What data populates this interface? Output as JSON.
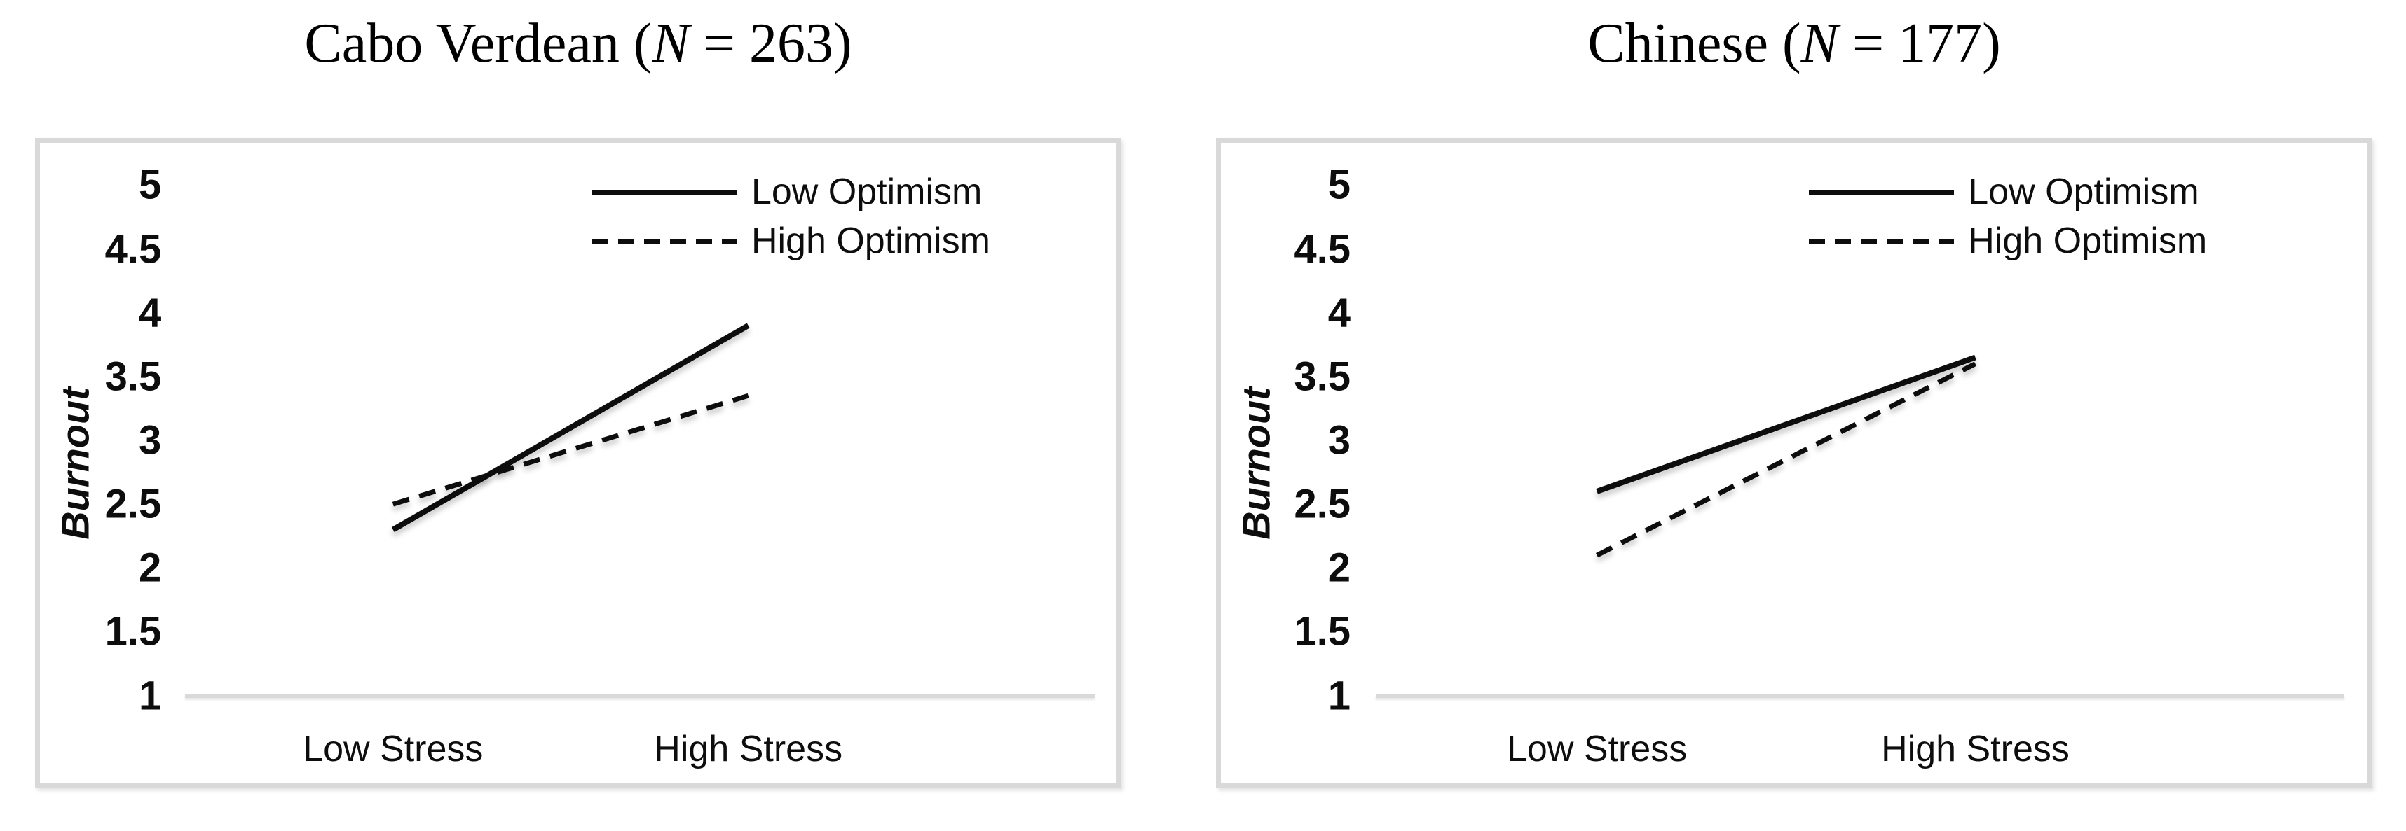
{
  "colors": {
    "background": "#ffffff",
    "text": "#0d0d0d",
    "line": "#0d0d0d",
    "frame_border": "#d9d9d9",
    "baseline": "#d9d9d9"
  },
  "charts": [
    {
      "title": {
        "prefix": "Cabo Verdean (",
        "n_symbol": "N",
        "suffix": " = 263)"
      }
    },
    {
      "title": {
        "prefix": "Chinese (",
        "n_symbol": "N",
        "suffix": " = 177)"
      }
    }
  ],
  "chart_data": [
    {
      "type": "line",
      "title": "Cabo Verdean (N = 263)",
      "xlabel": "",
      "ylabel": "Burnout",
      "categories": [
        "Low Stress",
        "High Stress"
      ],
      "ylim": [
        1,
        5
      ],
      "ytick_step": 0.5,
      "ytick_labels": [
        "5",
        "4.5",
        "4",
        "3.5",
        "3",
        "2.5",
        "2",
        "1.5",
        "1"
      ],
      "grid": false,
      "legend_position": "top-right",
      "series": [
        {
          "name": "Low Optimism",
          "line_style": "solid",
          "color": "#0d0d0d",
          "values": [
            2.3,
            3.9
          ]
        },
        {
          "name": "High Optimism",
          "line_style": "dashed",
          "color": "#0d0d0d",
          "values": [
            2.5,
            3.35
          ]
        }
      ]
    },
    {
      "type": "line",
      "title": "Chinese (N = 177)",
      "xlabel": "",
      "ylabel": "Burnout",
      "categories": [
        "Low Stress",
        "High Stress"
      ],
      "ylim": [
        1,
        5
      ],
      "ytick_step": 0.5,
      "ytick_labels": [
        "5",
        "4.5",
        "4",
        "3.5",
        "3",
        "2.5",
        "2",
        "1.5",
        "1"
      ],
      "grid": false,
      "legend_position": "top-right",
      "series": [
        {
          "name": "Low Optimism",
          "line_style": "solid",
          "color": "#0d0d0d",
          "values": [
            2.6,
            3.65
          ]
        },
        {
          "name": "High Optimism",
          "line_style": "dashed",
          "color": "#0d0d0d",
          "values": [
            2.1,
            3.6
          ]
        }
      ]
    }
  ]
}
